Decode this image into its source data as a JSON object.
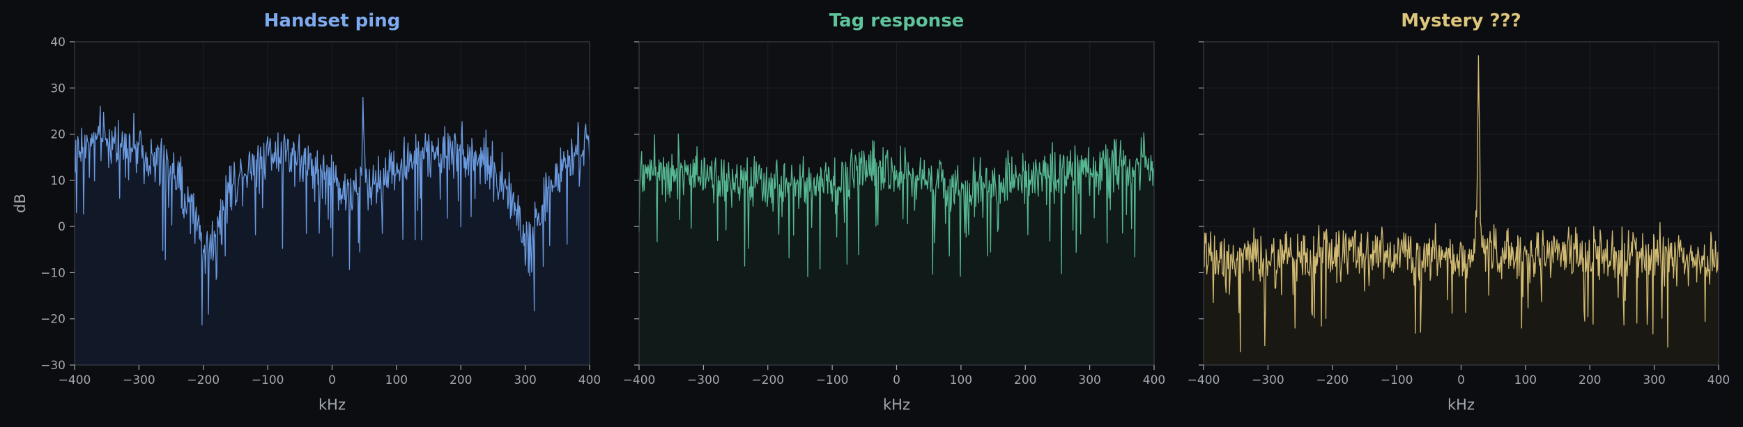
{
  "chart_data": [
    {
      "type": "line",
      "title": "Handset ping",
      "xlabel": "kHz",
      "ylabel": "dB",
      "xlim": [
        -400,
        400
      ],
      "ylim": [
        -30,
        40
      ],
      "xticks": [
        -400,
        -300,
        -200,
        -100,
        0,
        100,
        200,
        300,
        400
      ],
      "yticks": [
        -30,
        -20,
        -10,
        0,
        10,
        20,
        30,
        40
      ],
      "grid": true,
      "color": "#6a9ae0",
      "title_color": "#7eaaf0",
      "fill_color": "#111827",
      "series": [
        {
          "values": [
            {
              "x": -400,
              "y": 16
            },
            {
              "x": -360,
              "y": 19
            },
            {
              "x": -320,
              "y": 18
            },
            {
              "x": -280,
              "y": 15
            },
            {
              "x": -250,
              "y": 12
            },
            {
              "x": -220,
              "y": 5
            },
            {
              "x": -205,
              "y": -2
            },
            {
              "x": -195,
              "y": -6
            },
            {
              "x": -180,
              "y": 0
            },
            {
              "x": -160,
              "y": 8
            },
            {
              "x": -120,
              "y": 15
            },
            {
              "x": -80,
              "y": 17
            },
            {
              "x": -40,
              "y": 14
            },
            {
              "x": 0,
              "y": 10
            },
            {
              "x": 30,
              "y": 7
            },
            {
              "x": 60,
              "y": 8
            },
            {
              "x": 100,
              "y": 13
            },
            {
              "x": 150,
              "y": 16
            },
            {
              "x": 200,
              "y": 17
            },
            {
              "x": 240,
              "y": 14
            },
            {
              "x": 270,
              "y": 8
            },
            {
              "x": 290,
              "y": 2
            },
            {
              "x": 300,
              "y": -4
            },
            {
              "x": 315,
              "y": 0
            },
            {
              "x": 340,
              "y": 9
            },
            {
              "x": 370,
              "y": 15
            },
            {
              "x": 400,
              "y": 18
            }
          ],
          "noise_db": 6,
          "spikes": [
            {
              "x": 48,
              "y": 28
            }
          ]
        }
      ]
    },
    {
      "type": "line",
      "title": "Tag response",
      "xlabel": "kHz",
      "xlim": [
        -400,
        400
      ],
      "ylim": [
        -30,
        40
      ],
      "xticks": [
        -400,
        -300,
        -200,
        -100,
        0,
        100,
        200,
        300,
        400
      ],
      "yticks": [
        -30,
        -20,
        -10,
        0,
        10,
        20,
        30,
        40
      ],
      "grid": true,
      "color": "#56b892",
      "title_color": "#5fc49c",
      "fill_color": "#101a18",
      "series": [
        {
          "values": [
            {
              "x": -400,
              "y": 13
            },
            {
              "x": -300,
              "y": 12
            },
            {
              "x": -200,
              "y": 8
            },
            {
              "x": -100,
              "y": 10
            },
            {
              "x": -30,
              "y": 14
            },
            {
              "x": 50,
              "y": 10
            },
            {
              "x": 100,
              "y": 8
            },
            {
              "x": 200,
              "y": 10
            },
            {
              "x": 300,
              "y": 13
            },
            {
              "x": 400,
              "y": 14
            }
          ],
          "noise_db": 6,
          "spikes": []
        }
      ]
    },
    {
      "type": "line",
      "title": "Mystery ???",
      "xlabel": "kHz",
      "xlim": [
        -400,
        400
      ],
      "ylim": [
        -30,
        40
      ],
      "xticks": [
        -400,
        -300,
        -200,
        -100,
        0,
        100,
        200,
        300,
        400
      ],
      "yticks": [
        -30,
        -20,
        -10,
        0,
        10,
        20,
        30,
        40
      ],
      "grid": true,
      "color": "#d2bb72",
      "title_color": "#dcc57c",
      "fill_color": "#1a1812",
      "series": [
        {
          "values": [
            {
              "x": -400,
              "y": -7
            },
            {
              "x": -200,
              "y": -6
            },
            {
              "x": 0,
              "y": -6
            },
            {
              "x": 200,
              "y": -6
            },
            {
              "x": 400,
              "y": -7
            }
          ],
          "noise_db": 6,
          "spikes": [
            {
              "x": 27,
              "y": 37
            }
          ]
        }
      ]
    }
  ]
}
